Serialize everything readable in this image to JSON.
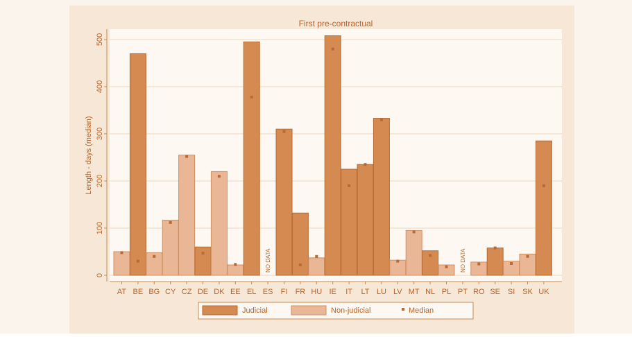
{
  "colors": {
    "page_bg": "#fbf4ec",
    "panel_bg": "#f6e7d6",
    "plot_bg": "#fdf8f2",
    "grid": "#ecd7bd",
    "axis": "#c88a52",
    "text": "#b8632a",
    "judicial": "#d58a52",
    "judicial_stroke": "#b86a34",
    "nonjudicial": "#eab796",
    "nonjudicial_stroke": "#cf8f62",
    "median": "#b86a34"
  },
  "chart_data": {
    "type": "bar",
    "title": "First pre-contractual",
    "ylabel": "Length - days (median)",
    "xlabel": "",
    "ylim": [
      0,
      520
    ],
    "yticks": [
      0,
      100,
      200,
      300,
      400,
      500
    ],
    "grid": true,
    "legend_position": "bottom",
    "no_data_label": "NO DATA",
    "categories": [
      "AT",
      "BE",
      "BG",
      "CY",
      "CZ",
      "DE",
      "DK",
      "EE",
      "EL",
      "ES",
      "FI",
      "FR",
      "HU",
      "IE",
      "IT",
      "LT",
      "LU",
      "LV",
      "MT",
      "NL",
      "PL",
      "PT",
      "RO",
      "SE",
      "SI",
      "SK",
      "UK"
    ],
    "series": [
      {
        "name": "Judicial",
        "values": [
          50,
          470,
          48,
          117,
          255,
          60,
          220,
          22,
          495,
          null,
          310,
          132,
          37,
          508,
          225,
          235,
          333,
          32,
          95,
          52,
          22,
          null,
          28,
          58,
          30,
          45,
          285
        ]
      },
      {
        "name": "Non-judicial"
      },
      {
        "name": "Median",
        "values": [
          48,
          30,
          40,
          112,
          252,
          47,
          210,
          23,
          378,
          null,
          305,
          22,
          40,
          480,
          190,
          235,
          330,
          30,
          92,
          42,
          18,
          null,
          24,
          58,
          25,
          40,
          190
        ]
      }
    ],
    "bar_types": [
      "nonjudicial",
      "judicial",
      "nonjudicial",
      "nonjudicial",
      "nonjudicial",
      "judicial",
      "nonjudicial",
      "nonjudicial",
      "judicial",
      "none",
      "judicial",
      "judicial",
      "nonjudicial",
      "judicial",
      "judicial",
      "judicial",
      "judicial",
      "nonjudicial",
      "nonjudicial",
      "judicial",
      "nonjudicial",
      "none",
      "nonjudicial",
      "judicial",
      "nonjudicial",
      "nonjudicial",
      "judicial"
    ]
  }
}
